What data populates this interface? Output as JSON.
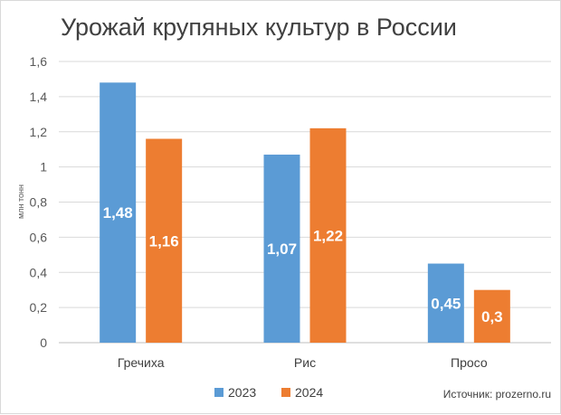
{
  "chart_data": {
    "type": "bar",
    "title": "Урожай крупяных культур в России",
    "ylabel": "млн тонн",
    "xlabel": "",
    "categories": [
      "Гречиха",
      "Рис",
      "Просо"
    ],
    "series": [
      {
        "name": "2023",
        "color": "#5b9bd5",
        "values": [
          1.48,
          1.07,
          0.45
        ],
        "labels": [
          "1,48",
          "1,07",
          "0,45"
        ]
      },
      {
        "name": "2024",
        "color": "#ed7d31",
        "values": [
          1.16,
          1.22,
          0.3
        ],
        "labels": [
          "1,16",
          "1,22",
          "0,3"
        ]
      }
    ],
    "ylim": [
      0,
      1.6
    ],
    "yticks": [
      {
        "value": 0,
        "label": "0"
      },
      {
        "value": 0.2,
        "label": "0,2"
      },
      {
        "value": 0.4,
        "label": "0,4"
      },
      {
        "value": 0.6,
        "label": "0,6"
      },
      {
        "value": 0.8,
        "label": "0,8"
      },
      {
        "value": 1.0,
        "label": "1"
      },
      {
        "value": 1.2,
        "label": "1,2"
      },
      {
        "value": 1.4,
        "label": "1,4"
      },
      {
        "value": 1.6,
        "label": "1,6"
      }
    ],
    "grid": true,
    "legend_position": "bottom",
    "source": "Источник:  prozerno.ru"
  }
}
